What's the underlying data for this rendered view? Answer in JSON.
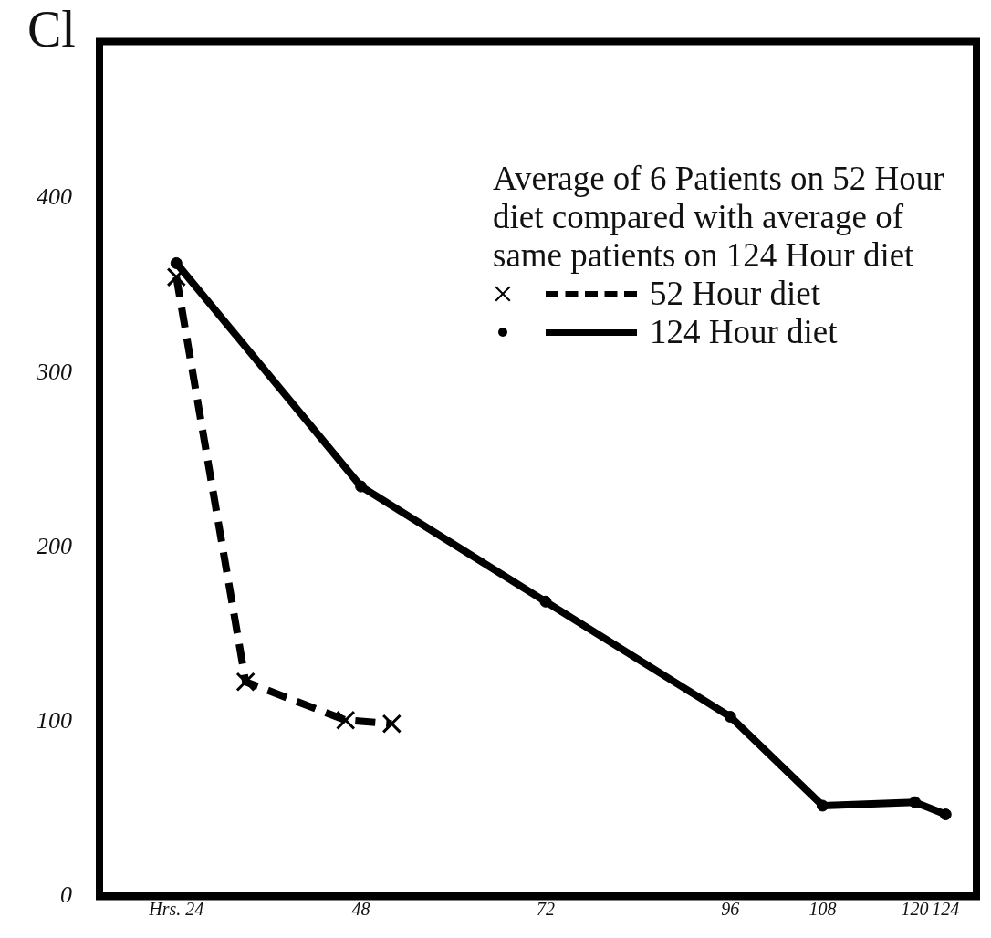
{
  "chart_data": {
    "type": "line",
    "title": "Average of 6 Patients on 52 Hour diet compared with average of same patients on 124 Hour diet",
    "ylabel": "Cl",
    "xlim": [
      14,
      128
    ],
    "xticks": [
      {
        "value": 24,
        "label": "Hrs. 24"
      },
      48,
      72,
      96,
      108,
      120,
      124
    ],
    "ylim": [
      0,
      490
    ],
    "yticks": [
      0,
      100,
      200,
      300,
      400
    ],
    "grid": false,
    "legend": "top right",
    "series": [
      {
        "name": "52 Hour diet",
        "color": "#000000",
        "marker": "cross",
        "line_style": "dashed",
        "x": [
          24,
          33,
          46,
          52
        ],
        "values": [
          355,
          123,
          101,
          99
        ]
      },
      {
        "name": "124 Hour diet",
        "color": "#000000",
        "marker": "circle",
        "line_style": "solid",
        "x": [
          24,
          48,
          72,
          96,
          108,
          120,
          124
        ],
        "values": [
          363,
          235,
          169,
          103,
          52,
          54,
          47
        ]
      }
    ]
  }
}
